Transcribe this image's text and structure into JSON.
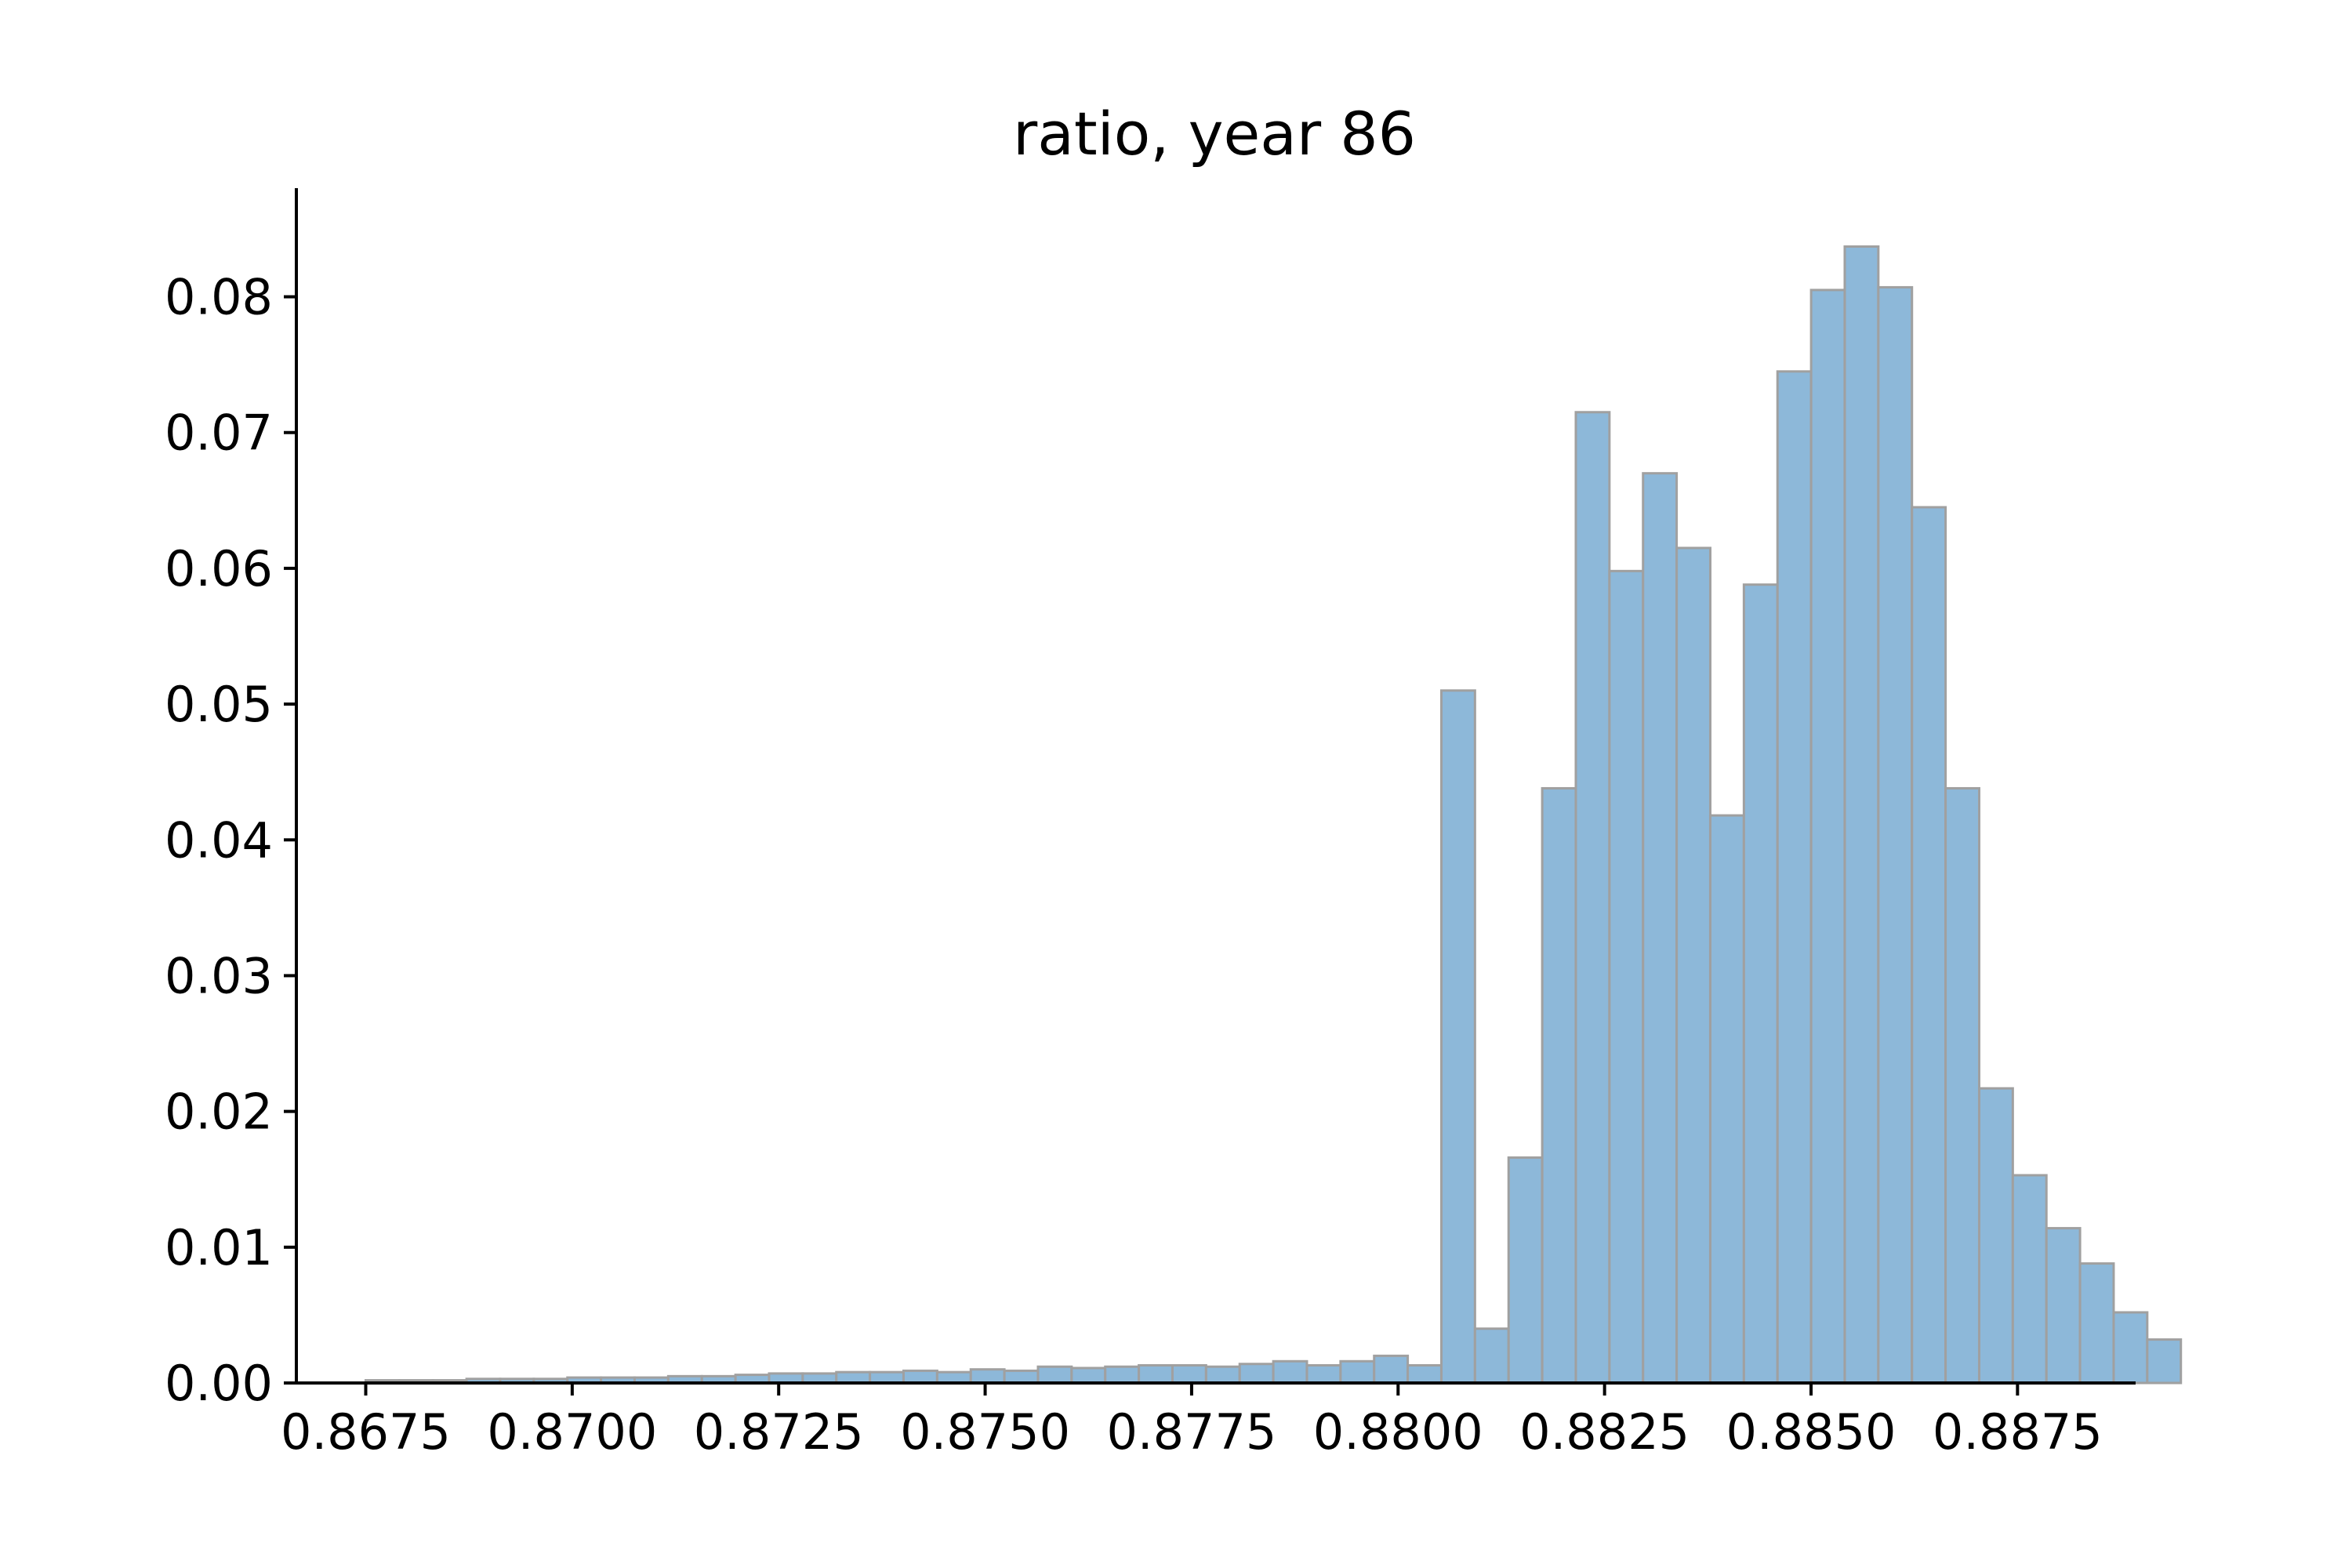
{
  "chart_data": {
    "type": "bar",
    "title": "ratio, year 86",
    "xlabel": "",
    "ylabel": "",
    "xlim": [
      0.86666,
      0.88893
    ],
    "ylim": [
      0,
      0.088
    ],
    "bin_start": 0.8675,
    "bin_width": 0.000407,
    "values": [
      0.0002,
      0.0002,
      0.0002,
      0.0003,
      0.0003,
      0.0003,
      0.0004,
      0.0004,
      0.0004,
      0.0005,
      0.0005,
      0.0006,
      0.0007,
      0.0007,
      0.0008,
      0.0008,
      0.0009,
      0.0008,
      0.001,
      0.0009,
      0.0012,
      0.0011,
      0.0012,
      0.0013,
      0.0013,
      0.0012,
      0.0014,
      0.0016,
      0.0013,
      0.0016,
      0.002,
      0.0013,
      0.051,
      0.004,
      0.0166,
      0.0438,
      0.0715,
      0.0598,
      0.067,
      0.0615,
      0.0418,
      0.0588,
      0.0745,
      0.0805,
      0.0837,
      0.0807,
      0.0645,
      0.0438,
      0.0217,
      0.0153,
      0.0114,
      0.0088,
      0.0052,
      0.0032
    ],
    "xticks": [
      0.8675,
      0.87,
      0.8725,
      0.875,
      0.8775,
      0.88,
      0.8825,
      0.885,
      0.8875
    ],
    "xtick_labels": [
      "0.8675",
      "0.8700",
      "0.8725",
      "0.8750",
      "0.8775",
      "0.8800",
      "0.8825",
      "0.8850",
      "0.8875"
    ],
    "yticks": [
      0,
      0.01,
      0.02,
      0.03,
      0.04,
      0.05,
      0.06,
      0.07,
      0.08
    ],
    "ytick_labels": [
      "0.00",
      "0.01",
      "0.02",
      "0.03",
      "0.04",
      "0.05",
      "0.06",
      "0.07",
      "0.08"
    ],
    "grid": false,
    "legend": "none",
    "bar_color": "#8db8d9",
    "edge_color": "#a0a0a0",
    "axis_color": "#000000"
  }
}
